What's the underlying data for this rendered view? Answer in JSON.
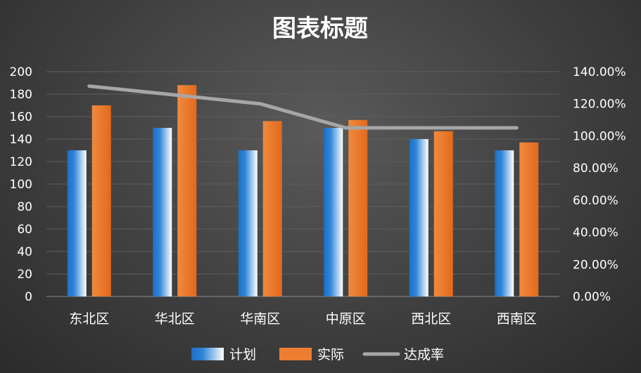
{
  "chart_data": {
    "type": "bar",
    "title": "图表标题",
    "categories": [
      "东北区",
      "华北区",
      "华南区",
      "中原区",
      "西北区",
      "西南区"
    ],
    "series": [
      {
        "name": "计划",
        "type": "bar",
        "axis": "left",
        "values": [
          130,
          150,
          130,
          150,
          140,
          130
        ]
      },
      {
        "name": "实际",
        "type": "bar",
        "axis": "left",
        "values": [
          170,
          188,
          156,
          157,
          147,
          137
        ]
      },
      {
        "name": "达成率",
        "type": "line",
        "axis": "right",
        "values": [
          1.31,
          1.255,
          1.2,
          1.05,
          1.05,
          1.05
        ]
      }
    ],
    "ylim": [
      0,
      200
    ],
    "yticks": [
      "0",
      "20",
      "40",
      "60",
      "80",
      "100",
      "120",
      "140",
      "160",
      "180",
      "200"
    ],
    "y2lim": [
      0,
      1.4
    ],
    "y2ticks": [
      "0.00%",
      "20.00%",
      "40.00%",
      "60.00%",
      "80.00%",
      "100.00%",
      "120.00%",
      "140.00%"
    ],
    "grid": true,
    "legend_position": "bottom",
    "colors": {
      "plan_dark": "#1e6fc2",
      "plan_light": "#ffffff",
      "actual": "#ed7d31",
      "rate": "#a6a6a6"
    }
  }
}
